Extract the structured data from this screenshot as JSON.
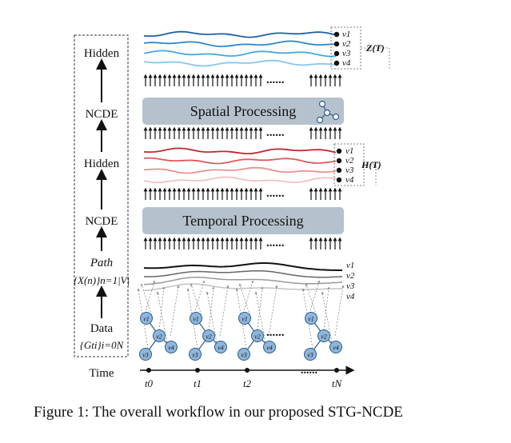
{
  "pipeline": {
    "hidden_top": "Hidden",
    "ncde_top": "NCDE",
    "hidden_mid": "Hidden",
    "ncde_bottom": "NCDE",
    "path_label": "Path",
    "path_formula": "{X(n)}n=1|V|",
    "data_label": "Data",
    "data_formula": "{Gti}i=0N",
    "time_label": "Time"
  },
  "blocks": {
    "spatial": "Spatial Processing",
    "temporal": "Temporal Processing"
  },
  "outputs": {
    "z_label": "Z(T)",
    "h_label": "H(T)"
  },
  "nodes": [
    "v1",
    "v2",
    "v3",
    "v4"
  ],
  "timeline": [
    "t0",
    "t1",
    "t2",
    "tN"
  ],
  "ellipsis": "......",
  "colors": {
    "blue_lines": [
      "#1f5fa8",
      "#2f86c8",
      "#4aa6dc",
      "#86c6ea"
    ],
    "red_lines": [
      "#c2272d",
      "#e0585a",
      "#ee8f8f",
      "#f4c0c0"
    ],
    "path_lines": [
      "#111111",
      "#666666",
      "#999999",
      "#c2c2c2"
    ],
    "block_fill": "#b5c2cd",
    "node_fill": "#8fb6dc"
  },
  "caption": "Figure 1: The overall workflow in our proposed STG-NCDE"
}
